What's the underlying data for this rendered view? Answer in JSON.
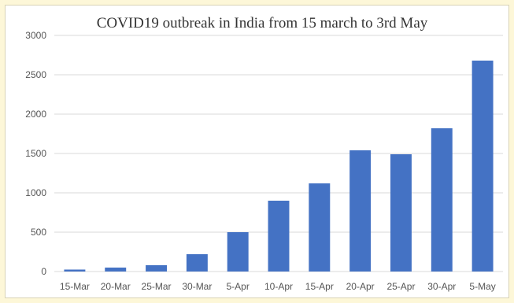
{
  "chart_data": {
    "type": "bar",
    "title": "COVID19 outbreak in India from 15 march to 3rd May",
    "xlabel": "",
    "ylabel": "",
    "categories": [
      "15-Mar",
      "20-Mar",
      "25-Mar",
      "30-Mar",
      "5-Apr",
      "10-Apr",
      "15-Apr",
      "20-Apr",
      "25-Apr",
      "30-Apr",
      "5-May"
    ],
    "values": [
      25,
      50,
      80,
      220,
      500,
      900,
      1120,
      1540,
      1490,
      1820,
      2680
    ],
    "ylim": [
      0,
      3000
    ],
    "yticks": [
      0,
      500,
      1000,
      1500,
      2000,
      2500,
      3000
    ],
    "grid": true,
    "legend": "none",
    "bar_color": "#4472c4",
    "grid_color": "#d9d9d9"
  }
}
